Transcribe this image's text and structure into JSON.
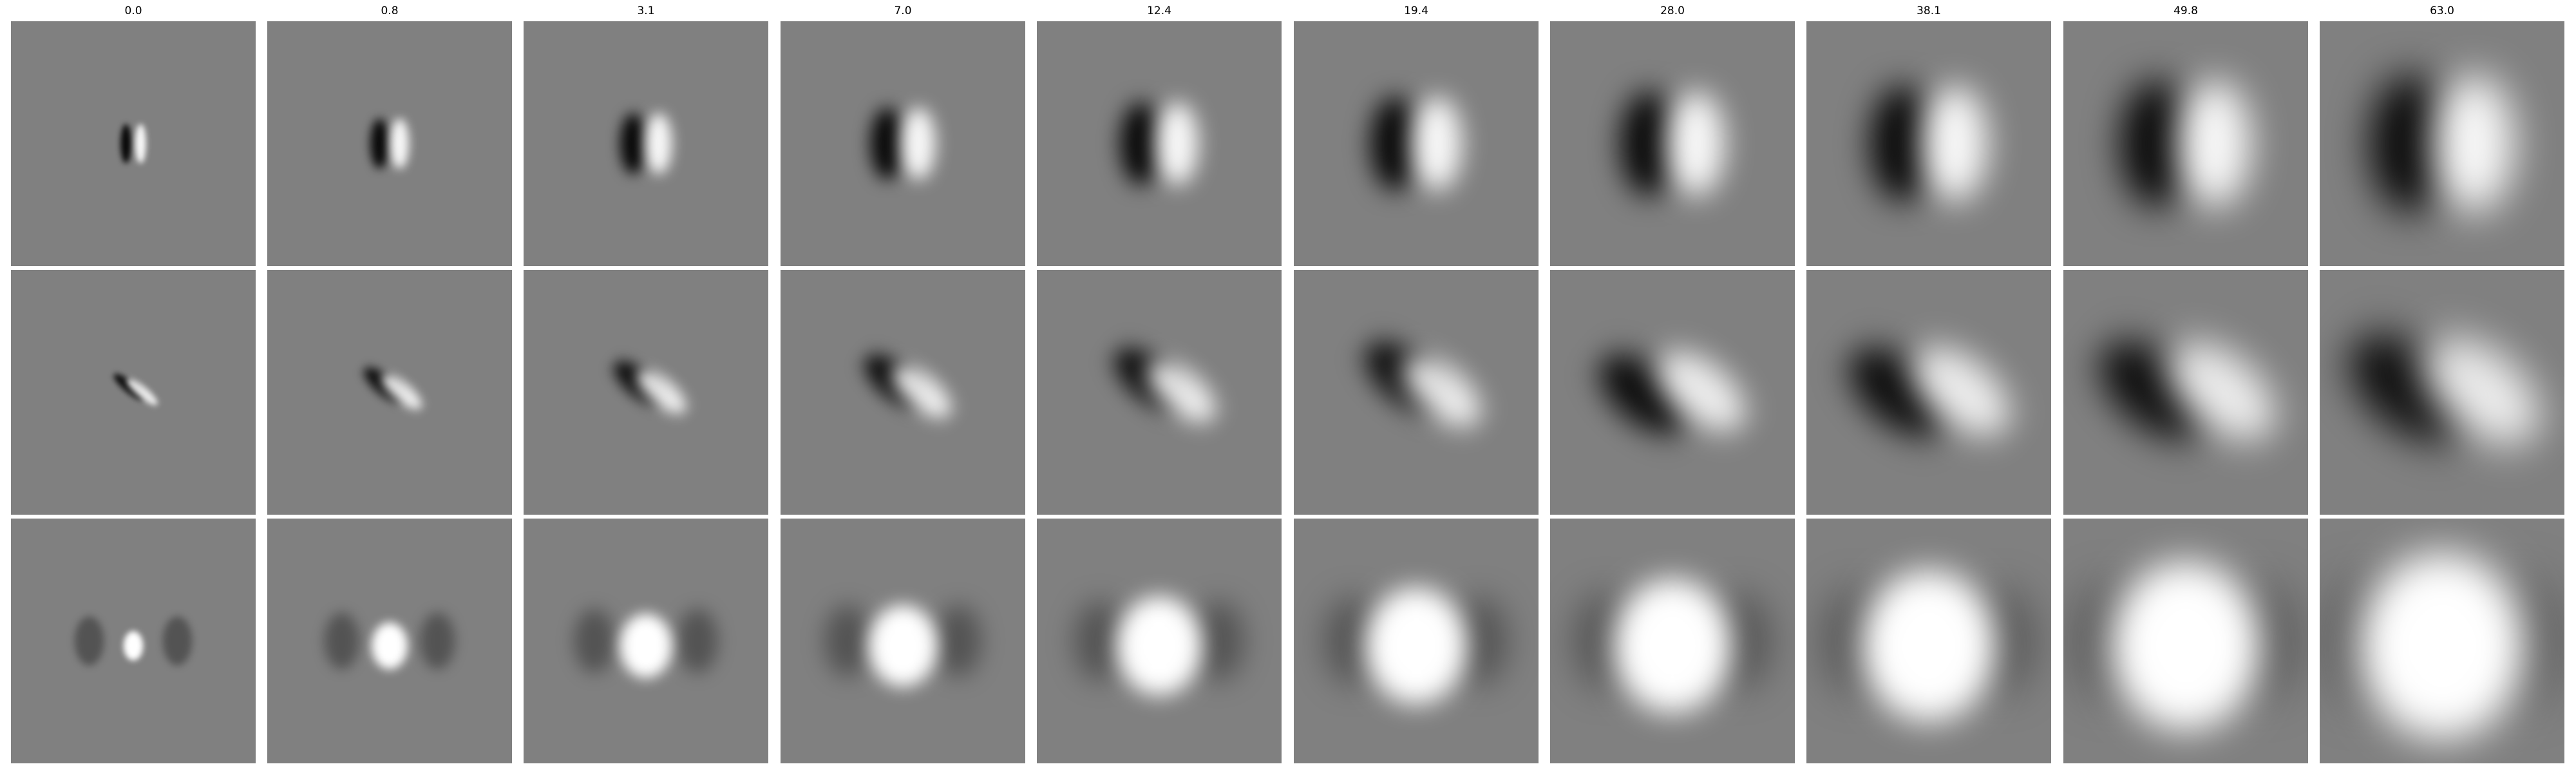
{
  "column_titles": [
    "0.0",
    "0.8",
    "3.1",
    "7.0",
    "12.4",
    "19.4",
    "28.0",
    "38.1",
    "49.8",
    "63.0"
  ],
  "row_patterns": [
    "vertical-dark-bright-pair",
    "diagonal-dark-bright-pair",
    "central-bright-blob"
  ],
  "grid": {
    "rows": 3,
    "columns": 10
  },
  "colors": {
    "background": "#ffffff",
    "neutral_gray": "#808080",
    "dark": "#000000",
    "bright": "#ffffff"
  }
}
